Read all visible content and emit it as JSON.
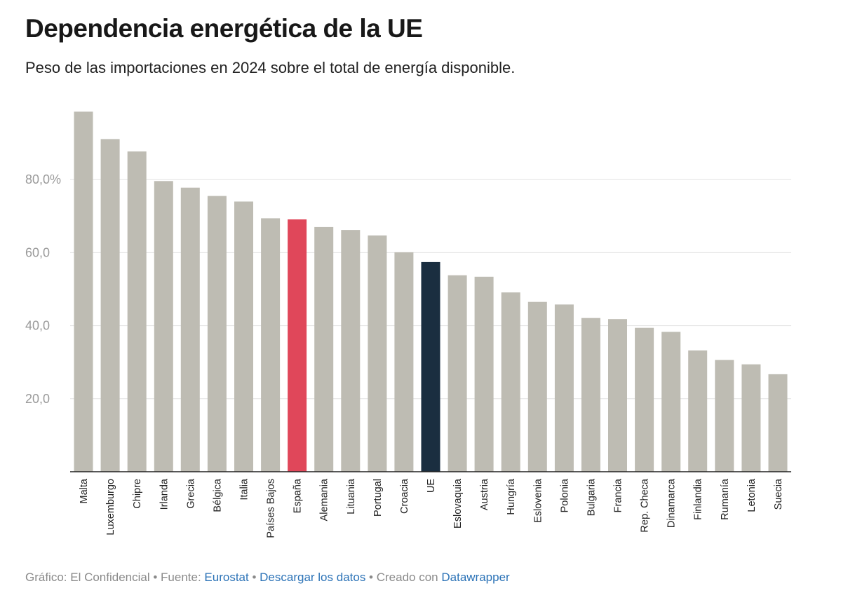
{
  "header": {
    "title": "Dependencia energética de la UE",
    "subtitle": "Peso de las importaciones en 2024 sobre el total de energía disponible."
  },
  "footer": {
    "credit": "Gráfico: El Confidencial",
    "separator": " • ",
    "source_prefix": "Fuente: ",
    "source_link": "Eurostat",
    "download_link": "Descargar los datos",
    "created_prefix": "Creado con ",
    "created_link": "Datawrapper"
  },
  "colors": {
    "default_bar": "#bebcb3",
    "highlight_spain": "#e0475a",
    "highlight_eu": "#1a2e40",
    "gridline": "#e3e3e3",
    "axis": "#222222"
  },
  "chart_data": {
    "type": "bar",
    "title": "Dependencia energética de la UE",
    "subtitle": "Peso de las importaciones en 2024 sobre el total de energía disponible.",
    "xlabel": "",
    "ylabel": "",
    "ylim": [
      0,
      100
    ],
    "y_ticks": [
      20,
      40,
      60,
      80
    ],
    "y_tick_labels": [
      "20,0",
      "40,0",
      "60,0",
      "80,0%"
    ],
    "grid": true,
    "categories": [
      "Malta",
      "Luxemburgo",
      "Chipre",
      "Irlanda",
      "Grecia",
      "Bélgica",
      "Italia",
      "Países Bajos",
      "España",
      "Alemania",
      "Lituania",
      "Portugal",
      "Croacia",
      "UE",
      "Eslovaquia",
      "Austria",
      "Hungría",
      "Eslovenia",
      "Polonia",
      "Bulgaria",
      "Francia",
      "Rep. Checa",
      "Dinamarca",
      "Finlandia",
      "Rumanía",
      "Letonia",
      "Suecia"
    ],
    "values": [
      98.6,
      91.1,
      87.7,
      79.6,
      77.8,
      75.5,
      74.0,
      69.4,
      69.1,
      67.0,
      66.2,
      64.7,
      60.1,
      57.4,
      53.8,
      53.4,
      49.1,
      46.5,
      45.8,
      42.1,
      41.8,
      39.4,
      38.3,
      33.2,
      30.6,
      29.4,
      26.7
    ],
    "highlights": {
      "España": "highlight_spain",
      "UE": "highlight_eu"
    }
  }
}
